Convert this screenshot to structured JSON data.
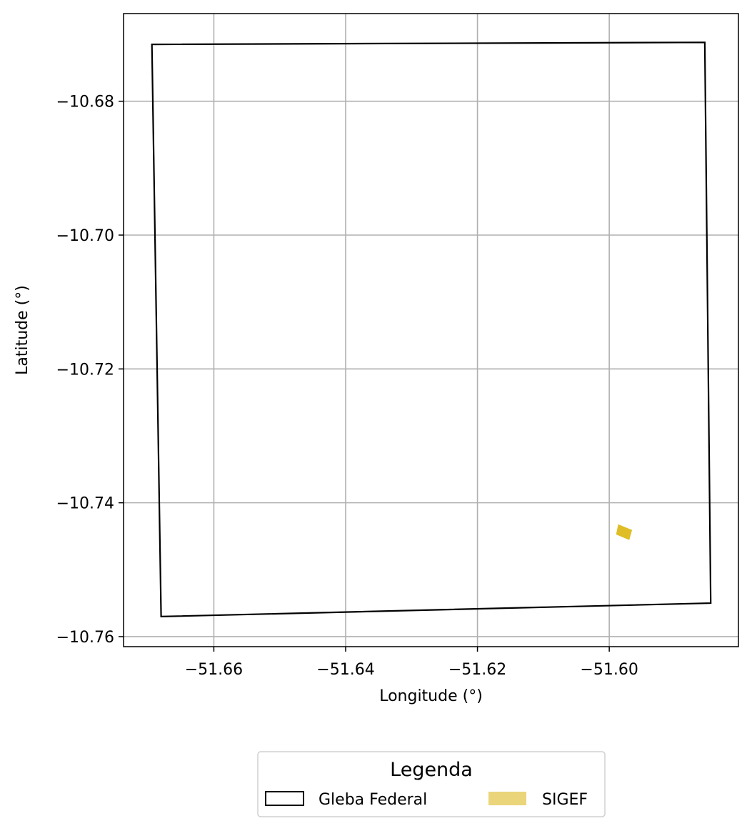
{
  "chart_data": {
    "type": "map",
    "xlabel": "Longitude (°)",
    "ylabel": "Latitude (°)",
    "xlim": [
      -51.6737,
      -51.5804
    ],
    "ylim": [
      -10.7615,
      -10.6669
    ],
    "xticks": [
      -51.66,
      -51.64,
      -51.62,
      -51.6
    ],
    "xtick_labels": [
      "−51.66",
      "−51.64",
      "−51.62",
      "−51.60"
    ],
    "yticks": [
      -10.68,
      -10.7,
      -10.72,
      -10.74,
      -10.76
    ],
    "ytick_labels": [
      "−10.68",
      "−10.70",
      "−10.72",
      "−10.74",
      "−10.76"
    ],
    "grid": true,
    "series": [
      {
        "name": "Gleba Federal",
        "kind": "polygon-outline",
        "stroke": "#000000",
        "fill": "none",
        "coords": [
          [
            -51.6694,
            -10.6715
          ],
          [
            -51.5855,
            -10.6712
          ],
          [
            -51.5846,
            -10.755
          ],
          [
            -51.668,
            -10.757
          ]
        ]
      },
      {
        "name": "SIGEF",
        "kind": "polygon-filled",
        "stroke": "#DFBD27",
        "fill": "#DFBD27",
        "coords": [
          [
            -51.5986,
            -10.7433
          ],
          [
            -51.5966,
            -10.7441
          ],
          [
            -51.597,
            -10.7455
          ],
          [
            -51.5989,
            -10.7447
          ]
        ]
      }
    ],
    "legend": {
      "title": "Legenda",
      "position": "bottom-center",
      "entries": [
        {
          "label": "Gleba Federal",
          "style": "outline",
          "stroke": "#000000",
          "fill": "#ffffff"
        },
        {
          "label": "SIGEF",
          "style": "filled",
          "stroke": "#EBD57A",
          "fill": "#EBD57A"
        }
      ]
    }
  }
}
